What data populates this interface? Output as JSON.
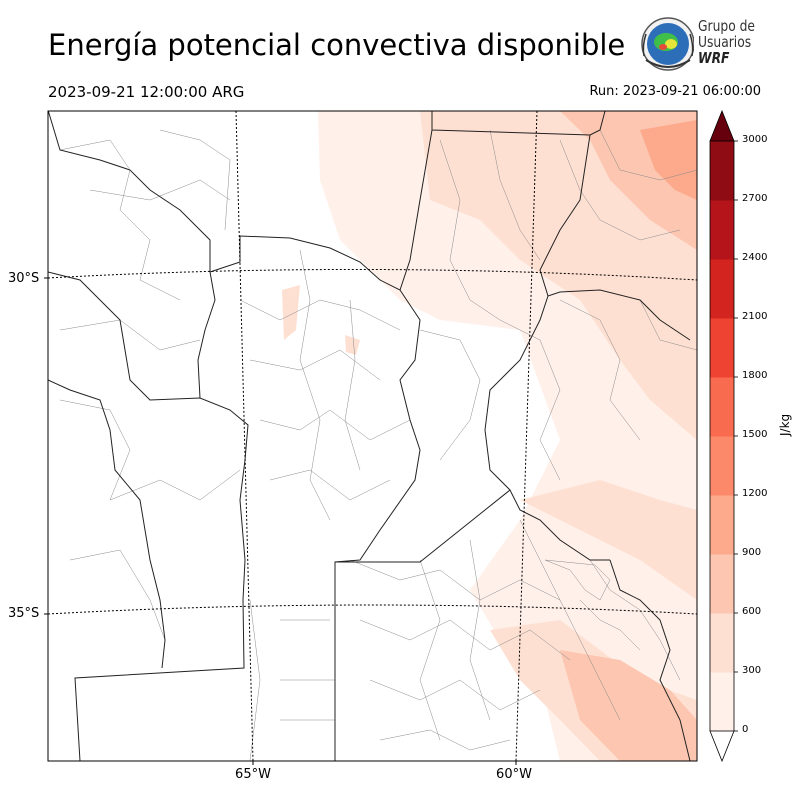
{
  "title": "Energía potencial convectiva disponible",
  "valid_time": "2023-09-21 12:00:00 ARG",
  "run_time": "Run: 2023-09-21 06:00:00",
  "logo": {
    "line1": "Grupo de",
    "line2": "Usuarios",
    "line3": "WRF"
  },
  "map": {
    "lat_labels": [
      "30°S",
      "35°S"
    ],
    "lon_labels": [
      "65°W",
      "60°W"
    ]
  },
  "colorbar": {
    "unit": "J/kg",
    "ticks": [
      "0",
      "300",
      "600",
      "900",
      "1200",
      "1500",
      "1800",
      "2100",
      "2400",
      "2700",
      "3000"
    ],
    "colors": [
      "#fff0ea",
      "#fee0d2",
      "#fcc6b0",
      "#fca98c",
      "#fc8a6a",
      "#f86b4f",
      "#ee4333",
      "#d42420",
      "#b5151a",
      "#900c14"
    ],
    "extend_top": "#67000d",
    "extend_bottom": "#ffffff"
  }
}
